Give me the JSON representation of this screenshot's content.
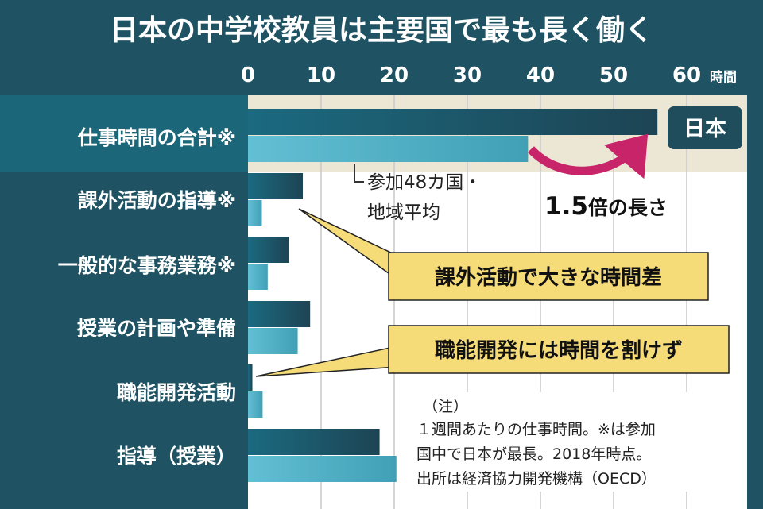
{
  "chart_data": {
    "type": "bar",
    "orientation": "horizontal",
    "title": "日本の中学校教員は主要国で最も長く働く",
    "unit": "時間",
    "xlim": [
      0,
      60
    ],
    "xticks": [
      "0",
      "10",
      "20",
      "30",
      "40",
      "50",
      "60"
    ],
    "grid": true,
    "categories": [
      "仕事時間の合計※",
      "課外活動の指導※",
      "一般的な事務業務※",
      "授業の計画や準備",
      "職能開発活動",
      "指導（授業）"
    ],
    "series": [
      {
        "name": "日本",
        "values": [
          56.0,
          7.5,
          5.6,
          8.5,
          0.6,
          18.0
        ]
      },
      {
        "name": "参加48カ国・地域平均",
        "values": [
          38.3,
          1.9,
          2.7,
          6.8,
          2.0,
          20.3
        ]
      }
    ],
    "annotations": {
      "japan_tag": "日本",
      "average_label_line1": "参加48カ国・",
      "average_label_line2": "地域平均",
      "ratio_value": "1.5",
      "ratio_suffix": "倍の長さ",
      "callout_extracurricular": "課外活動で大きな時間差",
      "callout_development": "職能開発には時間を割けず"
    },
    "note": {
      "heading": "（注）",
      "lines": [
        "１週間あたりの仕事時間。※は参加",
        "国中で日本が最長。2018年時点。",
        "出所は経済協力開発機構（OECD）"
      ]
    }
  },
  "colors": {
    "background": "#1f5363",
    "plot": "#ffffff",
    "highlight": "#ece6d4",
    "japan_bar": "#1d5567",
    "average_bar": "#62b9ce",
    "arrow": "#c8246a",
    "callout_fill": "#f5dc79",
    "tag": "#1f4d5c"
  }
}
